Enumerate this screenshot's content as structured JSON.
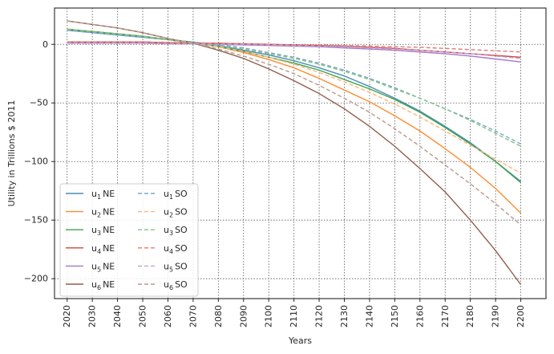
{
  "chart_data": {
    "type": "line",
    "xlabel": "Years",
    "ylabel": "Utility in Trillions $ 2011",
    "xlim": [
      2015,
      2210
    ],
    "ylim": [
      -217,
      31
    ],
    "x_ticks": [
      2020,
      2030,
      2040,
      2050,
      2060,
      2070,
      2080,
      2090,
      2100,
      2110,
      2120,
      2130,
      2140,
      2150,
      2160,
      2170,
      2180,
      2190,
      2200
    ],
    "y_ticks": [
      0,
      -50,
      -100,
      -150,
      -200
    ],
    "grid": true,
    "grid_style": "dotted",
    "legend_position": "lower-left",
    "legend_columns": 2,
    "x": [
      2020,
      2030,
      2040,
      2050,
      2060,
      2070,
      2080,
      2090,
      2100,
      2110,
      2120,
      2130,
      2140,
      2150,
      2160,
      2170,
      2180,
      2190,
      2200
    ],
    "series": [
      {
        "label_main": "u",
        "label_sub": "1",
        "label_suffix": "NE",
        "color": "#4c8bb5",
        "dash": "solid",
        "values": [
          12,
          10,
          8,
          6,
          4,
          2,
          -1,
          -5,
          -9,
          -14,
          -20,
          -27,
          -36,
          -46,
          -57,
          -70,
          -84,
          -100,
          -117
        ]
      },
      {
        "label_main": "u",
        "label_sub": "2",
        "label_suffix": "NE",
        "color": "#ff8c2e",
        "dash": "solid",
        "values": [
          13,
          11,
          9,
          7,
          4,
          1,
          -2,
          -7,
          -13,
          -20,
          -29,
          -39,
          -49,
          -61,
          -74,
          -89,
          -105,
          -123,
          -144
        ]
      },
      {
        "label_main": "u",
        "label_sub": "3",
        "label_suffix": "NE",
        "color": "#3fa34d",
        "dash": "solid",
        "values": [
          13,
          11,
          9,
          7,
          4,
          1,
          -2,
          -6,
          -11,
          -16,
          -22,
          -30,
          -38,
          -47,
          -58,
          -71,
          -85,
          -100,
          -118
        ]
      },
      {
        "label_main": "u",
        "label_sub": "4",
        "label_suffix": "NE",
        "color": "#d6403f",
        "dash": "solid",
        "values": [
          2,
          2,
          2,
          2,
          1.5,
          1,
          1,
          0.5,
          0,
          -0.5,
          -1,
          -1.5,
          -2.5,
          -3.5,
          -5,
          -6.5,
          -8,
          -9.5,
          -11
        ]
      },
      {
        "label_main": "u",
        "label_sub": "5",
        "label_suffix": "NE",
        "color": "#a477c8",
        "dash": "solid",
        "values": [
          1,
          1,
          1,
          1,
          0.5,
          0.5,
          0,
          -0.5,
          -1,
          -1.5,
          -2,
          -3,
          -4,
          -5,
          -6.5,
          -8,
          -10,
          -12.5,
          -15
        ]
      },
      {
        "label_main": "u",
        "label_sub": "6",
        "label_suffix": "NE",
        "color": "#8f5e4d",
        "dash": "solid",
        "values": [
          20,
          17,
          14,
          10,
          5,
          1,
          -5,
          -12,
          -21,
          -31,
          -42,
          -55,
          -70,
          -87,
          -106,
          -126,
          -150,
          -176,
          -205
        ]
      },
      {
        "label_main": "u",
        "label_sub": "1",
        "label_suffix": "SO",
        "color": "#7ea7c6",
        "dash": "dashed",
        "values": [
          12,
          10,
          8,
          6,
          4,
          2,
          0,
          -3,
          -7,
          -11,
          -16,
          -22,
          -29,
          -37,
          -46,
          -55,
          -64,
          -74,
          -85
        ]
      },
      {
        "label_main": "u",
        "label_sub": "2",
        "label_suffix": "SO",
        "color": "#ffb57a",
        "dash": "dashed",
        "values": [
          13,
          11,
          9,
          7,
          4,
          1,
          -2,
          -6,
          -11,
          -17,
          -24,
          -32,
          -41,
          -51,
          -62,
          -74,
          -86,
          -98,
          -110
        ]
      },
      {
        "label_main": "u",
        "label_sub": "3",
        "label_suffix": "SO",
        "color": "#7fc487",
        "dash": "dashed",
        "values": [
          13,
          11,
          9,
          7,
          4,
          2,
          -1,
          -4,
          -8,
          -12,
          -17,
          -23,
          -30,
          -38,
          -46,
          -55,
          -65,
          -76,
          -87
        ]
      },
      {
        "label_main": "u",
        "label_sub": "4",
        "label_suffix": "SO",
        "color": "#e07a7a",
        "dash": "dashed",
        "values": [
          2,
          2,
          2,
          2,
          1.5,
          1,
          1,
          0.5,
          0,
          -0.5,
          -0.5,
          -1,
          -1.5,
          -2,
          -2.5,
          -3.5,
          -4.5,
          -5.5,
          -6.5
        ]
      },
      {
        "label_main": "u",
        "label_sub": "5",
        "label_suffix": "SO",
        "color": "#b9a3d4",
        "dash": "dashed",
        "values": [
          1,
          1,
          1,
          1,
          0.5,
          0.5,
          0,
          0,
          -0.5,
          -1,
          -1.5,
          -2,
          -3,
          -4,
          -5,
          -6.5,
          -8,
          -10,
          -12
        ]
      },
      {
        "label_main": "u",
        "label_sub": "6",
        "label_suffix": "SO",
        "color": "#b79a8f",
        "dash": "dashed",
        "values": [
          20,
          17,
          14,
          10,
          5,
          1,
          -4,
          -10,
          -17,
          -25,
          -35,
          -46,
          -58,
          -72,
          -87,
          -103,
          -119,
          -136,
          -154
        ]
      }
    ]
  }
}
